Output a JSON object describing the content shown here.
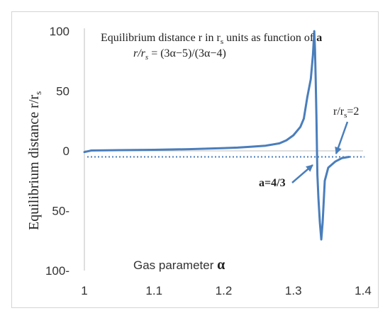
{
  "chart_data": {
    "type": "line",
    "title_line1_prefix": "Equilibrium distance r in r",
    "title_line1_sub": "s",
    "title_line1_mid": " units as function of ",
    "title_line1_bold": "a",
    "title_line2_prefix": "r/r",
    "title_line2_sub": "s",
    "title_line2_formula": " = (3α−5)/(3α−4)",
    "ylabel_prefix": "Equilibrium distance  r/r",
    "ylabel_sub": "s",
    "xlabel_text": "Gas parameter ",
    "xlabel_symbol": "α",
    "xlim": [
      1.0,
      1.4
    ],
    "ylim": [
      -100,
      100
    ],
    "x_ticks": [
      {
        "value": 1.0,
        "label": "1"
      },
      {
        "value": 1.1,
        "label": "1.1"
      },
      {
        "value": 1.2,
        "label": "1.2"
      },
      {
        "value": 1.3,
        "label": "1.3"
      },
      {
        "value": 1.4,
        "label": "1.4"
      }
    ],
    "y_ticks": [
      {
        "value": 100,
        "label": "100"
      },
      {
        "value": 50,
        "label": "50"
      },
      {
        "value": 0,
        "label": "0"
      },
      {
        "value": -50,
        "label": "50-"
      },
      {
        "value": -100,
        "label": "100-"
      }
    ],
    "series": [
      {
        "color": "#4a7ebb",
        "x": [
          1.0,
          1.01,
          1.05,
          1.1,
          1.15,
          1.2,
          1.22,
          1.24,
          1.26,
          1.28,
          1.29,
          1.3,
          1.31,
          1.315,
          1.32,
          1.325,
          1.328,
          1.33,
          1.331,
          1.332,
          1.333,
          1.3345,
          1.336,
          1.338,
          1.34,
          1.342,
          1.345,
          1.35,
          1.36,
          1.37,
          1.38
        ],
        "y": [
          -1,
          0.3,
          0.6,
          0.9,
          1.4,
          2.3,
          2.7,
          3.5,
          4.3,
          6.3,
          8.8,
          13,
          20,
          27,
          45,
          60,
          80,
          100,
          85,
          60,
          30,
          -20,
          -40,
          -60,
          -74,
          -60,
          -25,
          -14,
          -9,
          -6,
          -5
        ]
      }
    ],
    "reference_line": {
      "y": -5,
      "color": "#4a7ebb",
      "style": "dotted"
    },
    "annotations": [
      {
        "text": "a=4/3",
        "bold": true
      },
      {
        "text_prefix": "r/r",
        "text_sub": "s",
        "text_suffix": "=2",
        "bold_part": "2"
      }
    ],
    "grid": false,
    "legend": "none"
  }
}
